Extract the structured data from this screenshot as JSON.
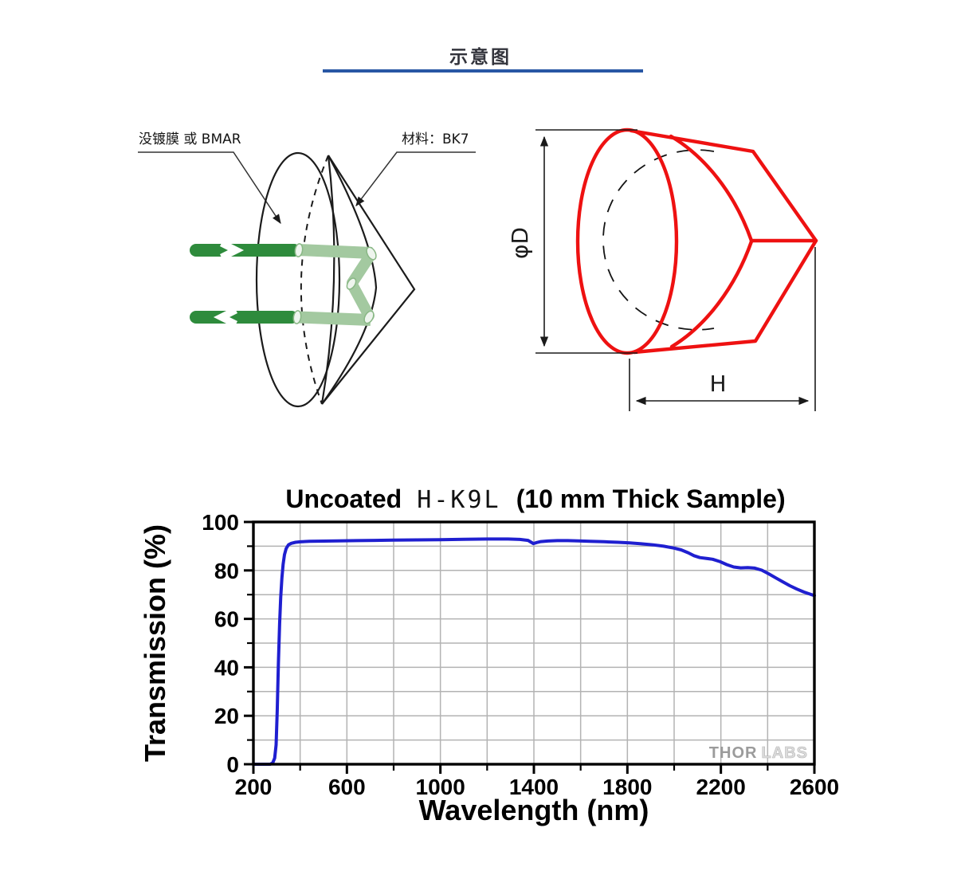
{
  "header": {
    "title": "示意图"
  },
  "colors": {
    "accent_blue": "#2857a4",
    "beam_dark_green": "#2e8b3c",
    "beam_light_green": "#a3c9a0",
    "prism_red": "#ee1111",
    "curve_blue": "#1f1fd0",
    "grid_gray": "#b3b3b3"
  },
  "left_diagram": {
    "coating_label": "没镀膜 或 BMAR",
    "material_label": "材料：BK7"
  },
  "right_diagram": {
    "diameter_label": "φD",
    "height_label": "H"
  },
  "chart_data": {
    "type": "line",
    "title_parts": [
      "Uncoated",
      "H-K9L",
      "(10 mm Thick Sample)"
    ],
    "xlabel": "Wavelength (nm)",
    "ylabel": "Transmission (%)",
    "xlim": [
      200,
      2600
    ],
    "ylim": [
      0,
      100
    ],
    "xticks_major": [
      200,
      600,
      1000,
      1400,
      1800,
      2200,
      2600
    ],
    "xticks_minor_step": 200,
    "yticks_major": [
      0,
      20,
      40,
      60,
      80,
      100
    ],
    "yticks_minor_step": 10,
    "grid": true,
    "legend_position": "none",
    "watermark": [
      "THOR",
      "LABS"
    ],
    "series": [
      {
        "name": "Uncoated H-K9L 10 mm thick sample",
        "color": "#1f1fd0",
        "points": [
          [
            200,
            0
          ],
          [
            255,
            0
          ],
          [
            272,
            0
          ],
          [
            283,
            0.6
          ],
          [
            291,
            2.5
          ],
          [
            297,
            8
          ],
          [
            302,
            22
          ],
          [
            307,
            42
          ],
          [
            312,
            58
          ],
          [
            317,
            69
          ],
          [
            322,
            77
          ],
          [
            327,
            82.5
          ],
          [
            333,
            86.5
          ],
          [
            340,
            89
          ],
          [
            350,
            90.6
          ],
          [
            362,
            91.2
          ],
          [
            380,
            91.6
          ],
          [
            400,
            91.8
          ],
          [
            440,
            92.0
          ],
          [
            500,
            92.1
          ],
          [
            560,
            92.2
          ],
          [
            640,
            92.3
          ],
          [
            720,
            92.4
          ],
          [
            800,
            92.5
          ],
          [
            900,
            92.6
          ],
          [
            1000,
            92.7
          ],
          [
            1100,
            92.85
          ],
          [
            1200,
            92.95
          ],
          [
            1290,
            92.95
          ],
          [
            1340,
            92.8
          ],
          [
            1375,
            92.4
          ],
          [
            1398,
            91.1
          ],
          [
            1412,
            91.5
          ],
          [
            1430,
            91.9
          ],
          [
            1460,
            92.15
          ],
          [
            1500,
            92.3
          ],
          [
            1545,
            92.3
          ],
          [
            1590,
            92.2
          ],
          [
            1640,
            92.05
          ],
          [
            1700,
            91.85
          ],
          [
            1760,
            91.6
          ],
          [
            1810,
            91.35
          ],
          [
            1860,
            91.0
          ],
          [
            1910,
            90.55
          ],
          [
            1955,
            90.0
          ],
          [
            2000,
            89.2
          ],
          [
            2030,
            88.5
          ],
          [
            2060,
            87.3
          ],
          [
            2085,
            86.1
          ],
          [
            2110,
            85.3
          ],
          [
            2135,
            85.0
          ],
          [
            2165,
            84.6
          ],
          [
            2195,
            83.7
          ],
          [
            2225,
            82.4
          ],
          [
            2255,
            81.4
          ],
          [
            2285,
            81.05
          ],
          [
            2315,
            81.15
          ],
          [
            2345,
            80.95
          ],
          [
            2375,
            80.1
          ],
          [
            2405,
            78.6
          ],
          [
            2435,
            76.9
          ],
          [
            2465,
            75.3
          ],
          [
            2495,
            73.7
          ],
          [
            2525,
            72.3
          ],
          [
            2555,
            71.1
          ],
          [
            2600,
            69.6
          ]
        ]
      }
    ]
  }
}
